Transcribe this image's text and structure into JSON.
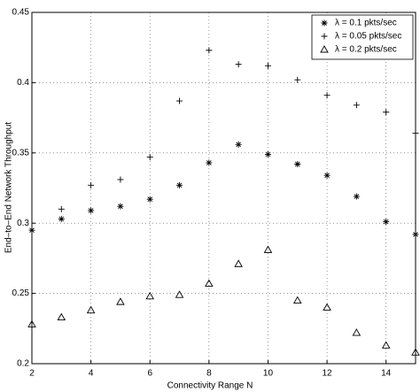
{
  "chart_data": {
    "type": "scatter",
    "x_label": "Connectivity Range N",
    "y_label": "End–to–End Network Throughput",
    "xlim": [
      2,
      15
    ],
    "xticks": [
      2,
      4,
      6,
      8,
      10,
      12,
      14
    ],
    "ylim": [
      0.2,
      0.45
    ],
    "yticks": [
      0.2,
      0.25,
      0.3,
      0.35,
      0.4,
      0.45
    ],
    "grid": true,
    "legend": "upper-right",
    "series": [
      {
        "name": "λ = 0.1 pkts/sec",
        "marker": "*",
        "color": "#000000",
        "x": [
          2,
          3,
          4,
          5,
          6,
          7,
          8,
          9,
          10,
          11,
          12,
          13,
          14,
          15
        ],
        "values": [
          0.295,
          0.303,
          0.309,
          0.312,
          0.317,
          0.327,
          0.343,
          0.356,
          0.349,
          0.342,
          0.334,
          0.319,
          0.301,
          0.292
        ]
      },
      {
        "name": "λ = 0.05 pkts/sec",
        "marker": "+",
        "color": "#000000",
        "x": [
          3,
          4,
          5,
          6,
          7,
          8,
          9,
          10,
          11,
          12,
          13,
          14,
          15
        ],
        "values": [
          0.31,
          0.327,
          0.331,
          0.347,
          0.387,
          0.423,
          0.413,
          0.412,
          0.402,
          0.391,
          0.384,
          0.379,
          0.364
        ]
      },
      {
        "name": "λ = 0.2 pkts/sec",
        "marker": "^",
        "color": "#000000",
        "x": [
          2,
          3,
          4,
          5,
          6,
          7,
          8,
          9,
          10,
          11,
          12,
          13,
          14,
          15
        ],
        "values": [
          0.228,
          0.233,
          0.238,
          0.244,
          0.248,
          0.249,
          0.257,
          0.271,
          0.281,
          0.245,
          0.24,
          0.222,
          0.213,
          0.208
        ]
      }
    ]
  }
}
